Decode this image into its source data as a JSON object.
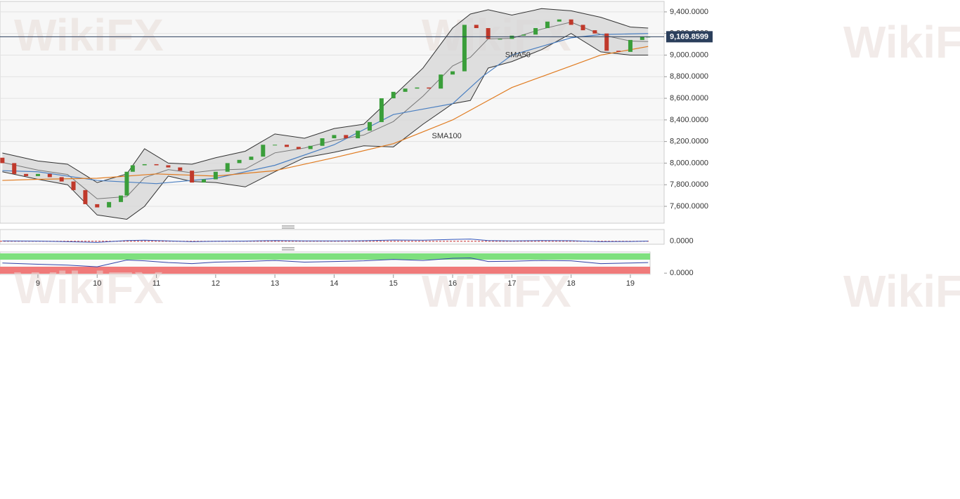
{
  "watermark": "WikiFX",
  "chart_data": {
    "type": "candlestick",
    "x": [
      8.4,
      8.6,
      8.8,
      9.0,
      9.2,
      9.4,
      9.6,
      9.8,
      10.0,
      10.2,
      10.4,
      10.5,
      10.6,
      10.8,
      11.0,
      11.2,
      11.4,
      11.6,
      11.8,
      12.0,
      12.2,
      12.4,
      12.6,
      12.8,
      13.0,
      13.2,
      13.4,
      13.6,
      13.8,
      14.0,
      14.2,
      14.4,
      14.6,
      14.8,
      15.0,
      15.2,
      15.4,
      15.6,
      15.8,
      16.0,
      16.2,
      16.4,
      16.6,
      16.8,
      17.0,
      17.2,
      17.4,
      17.6,
      17.8,
      18.0,
      18.2,
      18.4,
      18.6,
      18.8,
      19.0,
      19.2,
      19.3
    ],
    "open": [
      8050,
      8000,
      7900,
      7880,
      7900,
      7870,
      7830,
      7750,
      7620,
      7590,
      7640,
      7700,
      7920,
      7980,
      7990,
      7980,
      7960,
      7930,
      7820,
      7850,
      7920,
      8000,
      8030,
      8060,
      8170,
      8170,
      8150,
      8130,
      8160,
      8230,
      8260,
      8230,
      8300,
      8380,
      8600,
      8660,
      8690,
      8700,
      8690,
      8820,
      8850,
      9280,
      9250,
      9150,
      9150,
      9180,
      9190,
      9250,
      9310,
      9330,
      9280,
      9230,
      9200,
      9040,
      9030,
      9140,
      9170
    ],
    "close": [
      8000,
      7900,
      7880,
      7900,
      7870,
      7830,
      7750,
      7620,
      7590,
      7640,
      7700,
      7920,
      7980,
      7990,
      7980,
      7960,
      7930,
      7820,
      7850,
      7920,
      8000,
      8030,
      8060,
      8170,
      8170,
      8150,
      8130,
      8160,
      8230,
      8260,
      8230,
      8300,
      8380,
      8600,
      8660,
      8690,
      8700,
      8690,
      8820,
      8850,
      9280,
      9250,
      9150,
      9150,
      9180,
      9190,
      9250,
      9310,
      9330,
      9280,
      9230,
      9200,
      9040,
      9030,
      9140,
      9170,
      9170
    ],
    "up_color": "#3a9e3a",
    "down_color": "#c0392b",
    "xlim": [
      8.36,
      19.57
    ],
    "xticks": [
      9,
      10,
      11,
      12,
      13,
      14,
      15,
      16,
      17,
      18,
      19
    ],
    "ylim": [
      7444,
      9497
    ],
    "yticks": [
      {
        "value": 7600,
        "label": "7,600.0000"
      },
      {
        "value": 7800,
        "label": "7,800.0000"
      },
      {
        "value": 8000,
        "label": "8,000.0000"
      },
      {
        "value": 8200,
        "label": "8,200.0000"
      },
      {
        "value": 8400,
        "label": "8,400.0000"
      },
      {
        "value": 8600,
        "label": "8,600.0000"
      },
      {
        "value": 8800,
        "label": "8,800.0000"
      },
      {
        "value": 9000,
        "label": "9,000.0000"
      },
      {
        "value": 9200,
        "label": "9,200.0000"
      },
      {
        "value": 9400,
        "label": "9,400.0000"
      }
    ],
    "grid": true,
    "current_price": {
      "value": 9169.8599,
      "label": "9,169.8599"
    },
    "bollinger": {
      "x": [
        8.4,
        9,
        9.5,
        10,
        10.5,
        10.8,
        11.2,
        11.6,
        12,
        12.5,
        13,
        13.5,
        14,
        14.5,
        15,
        15.5,
        16,
        16.3,
        16.6,
        17,
        17.5,
        18,
        18.5,
        19,
        19.3
      ],
      "upper": [
        8094,
        8020,
        7990,
        7820,
        7900,
        8133,
        8000,
        7990,
        8050,
        8110,
        8270,
        8230,
        8320,
        8360,
        8620,
        8880,
        9250,
        9380,
        9420,
        9370,
        9430,
        9410,
        9350,
        9260,
        9250
      ],
      "middle": [
        8007,
        7935,
        7895,
        7670,
        7690,
        7866,
        7940,
        7910,
        7935,
        7945,
        8095,
        8140,
        8210,
        8260,
        8385,
        8620,
        8900,
        8980,
        9150,
        9155,
        9240,
        9305,
        9190,
        9130,
        9125
      ],
      "lower": [
        7920,
        7850,
        7800,
        7520,
        7480,
        7600,
        7880,
        7830,
        7820,
        7780,
        7920,
        8050,
        8100,
        8160,
        8150,
        8360,
        8550,
        8580,
        8880,
        8940,
        9050,
        9200,
        9030,
        9000,
        9000
      ]
    },
    "sma": {
      "x": [
        8.4,
        9,
        10,
        11,
        12,
        13,
        14,
        15,
        15.5,
        16,
        16.5,
        17,
        17.5,
        18,
        18.5,
        19.3
      ],
      "series": [
        {
          "name": "SMA50",
          "color": "#4a7fc1",
          "values": [
            7930,
            7920,
            7840,
            7810,
            7860,
            7980,
            8170,
            8450,
            8500,
            8550,
            8800,
            9000,
            9080,
            9160,
            9190,
            9200
          ],
          "label_at": [
            17.1,
            9000
          ]
        },
        {
          "name": "SMA100",
          "color": "#e07b20",
          "values": [
            7840,
            7850,
            7860,
            7900,
            7880,
            7930,
            8050,
            8180,
            8290,
            8400,
            8550,
            8700,
            8800,
            8900,
            9000,
            9080
          ],
          "label_at": [
            15.9,
            8250
          ]
        }
      ]
    },
    "macd": {
      "x": [
        8.4,
        9,
        9.5,
        10,
        10.5,
        10.8,
        11.2,
        11.6,
        12,
        12.5,
        13,
        13.5,
        14,
        14.5,
        15,
        15.5,
        16,
        16.3,
        16.6,
        17,
        17.5,
        18,
        18.5,
        19,
        19.3
      ],
      "values": [
        0.1,
        0.05,
        -0.1,
        -0.3,
        0.2,
        0.3,
        0.1,
        -0.1,
        0,
        0.05,
        0.2,
        0.1,
        0.1,
        0.15,
        0.35,
        0.3,
        0.5,
        0.6,
        0.2,
        0.1,
        0.2,
        0.15,
        -0.1,
        -0.05,
        0.05
      ],
      "color": "#3355bb",
      "ylim": [
        -0.8,
        3.2
      ],
      "yticks": [
        {
          "value": 0,
          "label": "0.0000"
        }
      ]
    },
    "oscillator": {
      "x": [
        8.4,
        9,
        9.5,
        10,
        10.5,
        10.8,
        11.2,
        11.6,
        12,
        12.5,
        13,
        13.5,
        14,
        14.5,
        15,
        15.5,
        16,
        16.3,
        16.6,
        17,
        17.5,
        18,
        18.5,
        19,
        19.3
      ],
      "values": [
        48,
        42,
        38,
        30,
        62,
        58,
        50,
        45,
        52,
        55,
        60,
        52,
        55,
        58,
        65,
        60,
        70,
        72,
        55,
        56,
        60,
        58,
        45,
        48,
        50
      ],
      "color": "#3344aa",
      "ylim": [
        -6,
        100
      ],
      "yticks": [
        {
          "value": 0,
          "label": "0.0000"
        }
      ]
    }
  }
}
